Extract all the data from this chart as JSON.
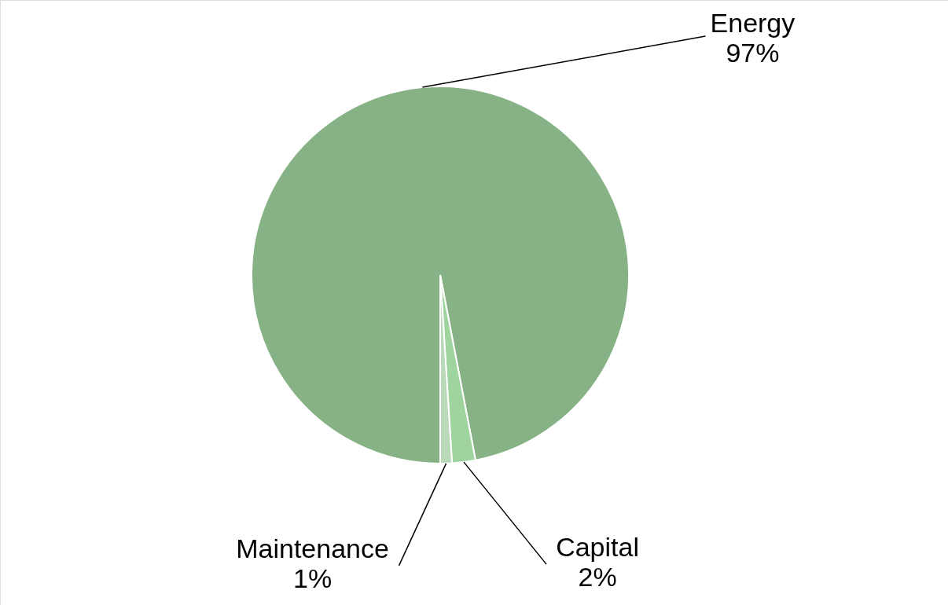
{
  "chart_data": {
    "type": "pie",
    "categories": [
      "Energy",
      "Capital",
      "Maintenance"
    ],
    "values": [
      97,
      2,
      1
    ],
    "value_labels": [
      "97%",
      "2%",
      "1%"
    ],
    "colors": [
      "#86b286",
      "#9fd49f",
      "#b9d9b9"
    ]
  }
}
